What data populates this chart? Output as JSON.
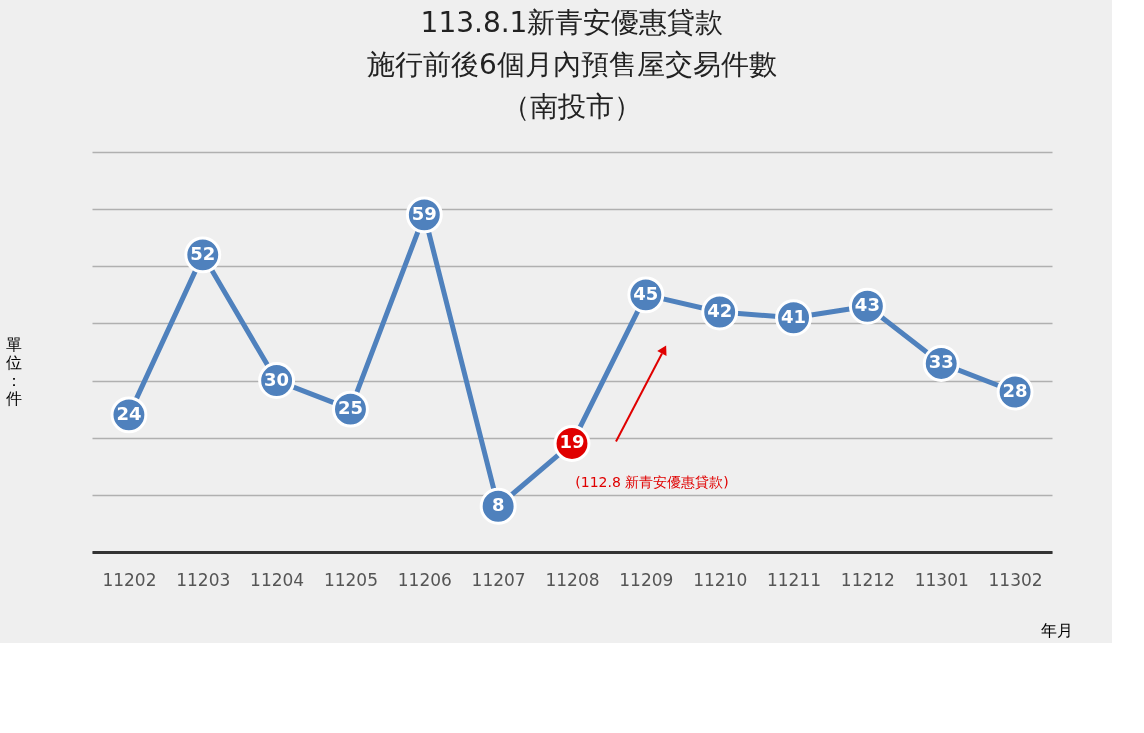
{
  "chart_data": {
    "type": "line",
    "title": [
      "113.8.1新青安優惠貸款",
      "施行前後6個月內預售屋交易件數",
      "（南投市）"
    ],
    "xlabel": "年月",
    "ylabel": "單位：件",
    "categories": [
      "11202",
      "11203",
      "11204",
      "11205",
      "11206",
      "11207",
      "11208",
      "11209",
      "11210",
      "11211",
      "11212",
      "11301",
      "11302"
    ],
    "series": [
      {
        "color": "#4f81bd",
        "values": [
          24,
          52,
          30,
          25,
          59,
          8,
          19,
          45,
          42,
          41,
          43,
          33,
          28
        ],
        "colors": [
          "#4f81bd",
          "#4f81bd",
          "#4f81bd",
          "#4f81bd",
          "#4f81bd",
          "#4f81bd",
          "#e00000",
          "#4f81bd",
          "#4f81bd",
          "#4f81bd",
          "#4f81bd",
          "#4f81bd",
          "#4f81bd"
        ]
      }
    ],
    "ylim": [
      0,
      70
    ],
    "yticks": [
      {
        "value": 0,
        "label": null
      },
      {
        "value": 10,
        "label": null
      },
      {
        "value": 20,
        "label": null
      },
      {
        "value": 30,
        "label": null
      },
      {
        "value": 40,
        "label": null
      },
      {
        "value": 50,
        "label": null
      },
      {
        "value": 60,
        "label": null
      },
      {
        "value": 70,
        "label": null
      }
    ],
    "tick_labels": "x",
    "grid": "y",
    "marker": "circle",
    "line_style": "solid",
    "data_labels": true,
    "annotations": [
      "(112.8 新青安優惠貸款)"
    ]
  }
}
